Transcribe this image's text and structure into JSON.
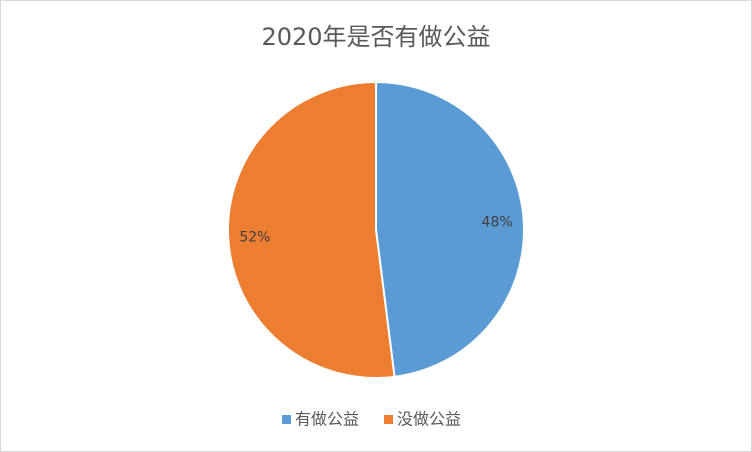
{
  "chart_data": {
    "type": "pie",
    "title": "2020年是否有做公益",
    "categories": [
      "有做公益",
      "没做公益"
    ],
    "values": [
      48,
      52
    ],
    "value_labels": [
      "48%",
      "52%"
    ],
    "colors": [
      "#5b9bd5",
      "#ed7d31"
    ],
    "legend": "bottom"
  }
}
